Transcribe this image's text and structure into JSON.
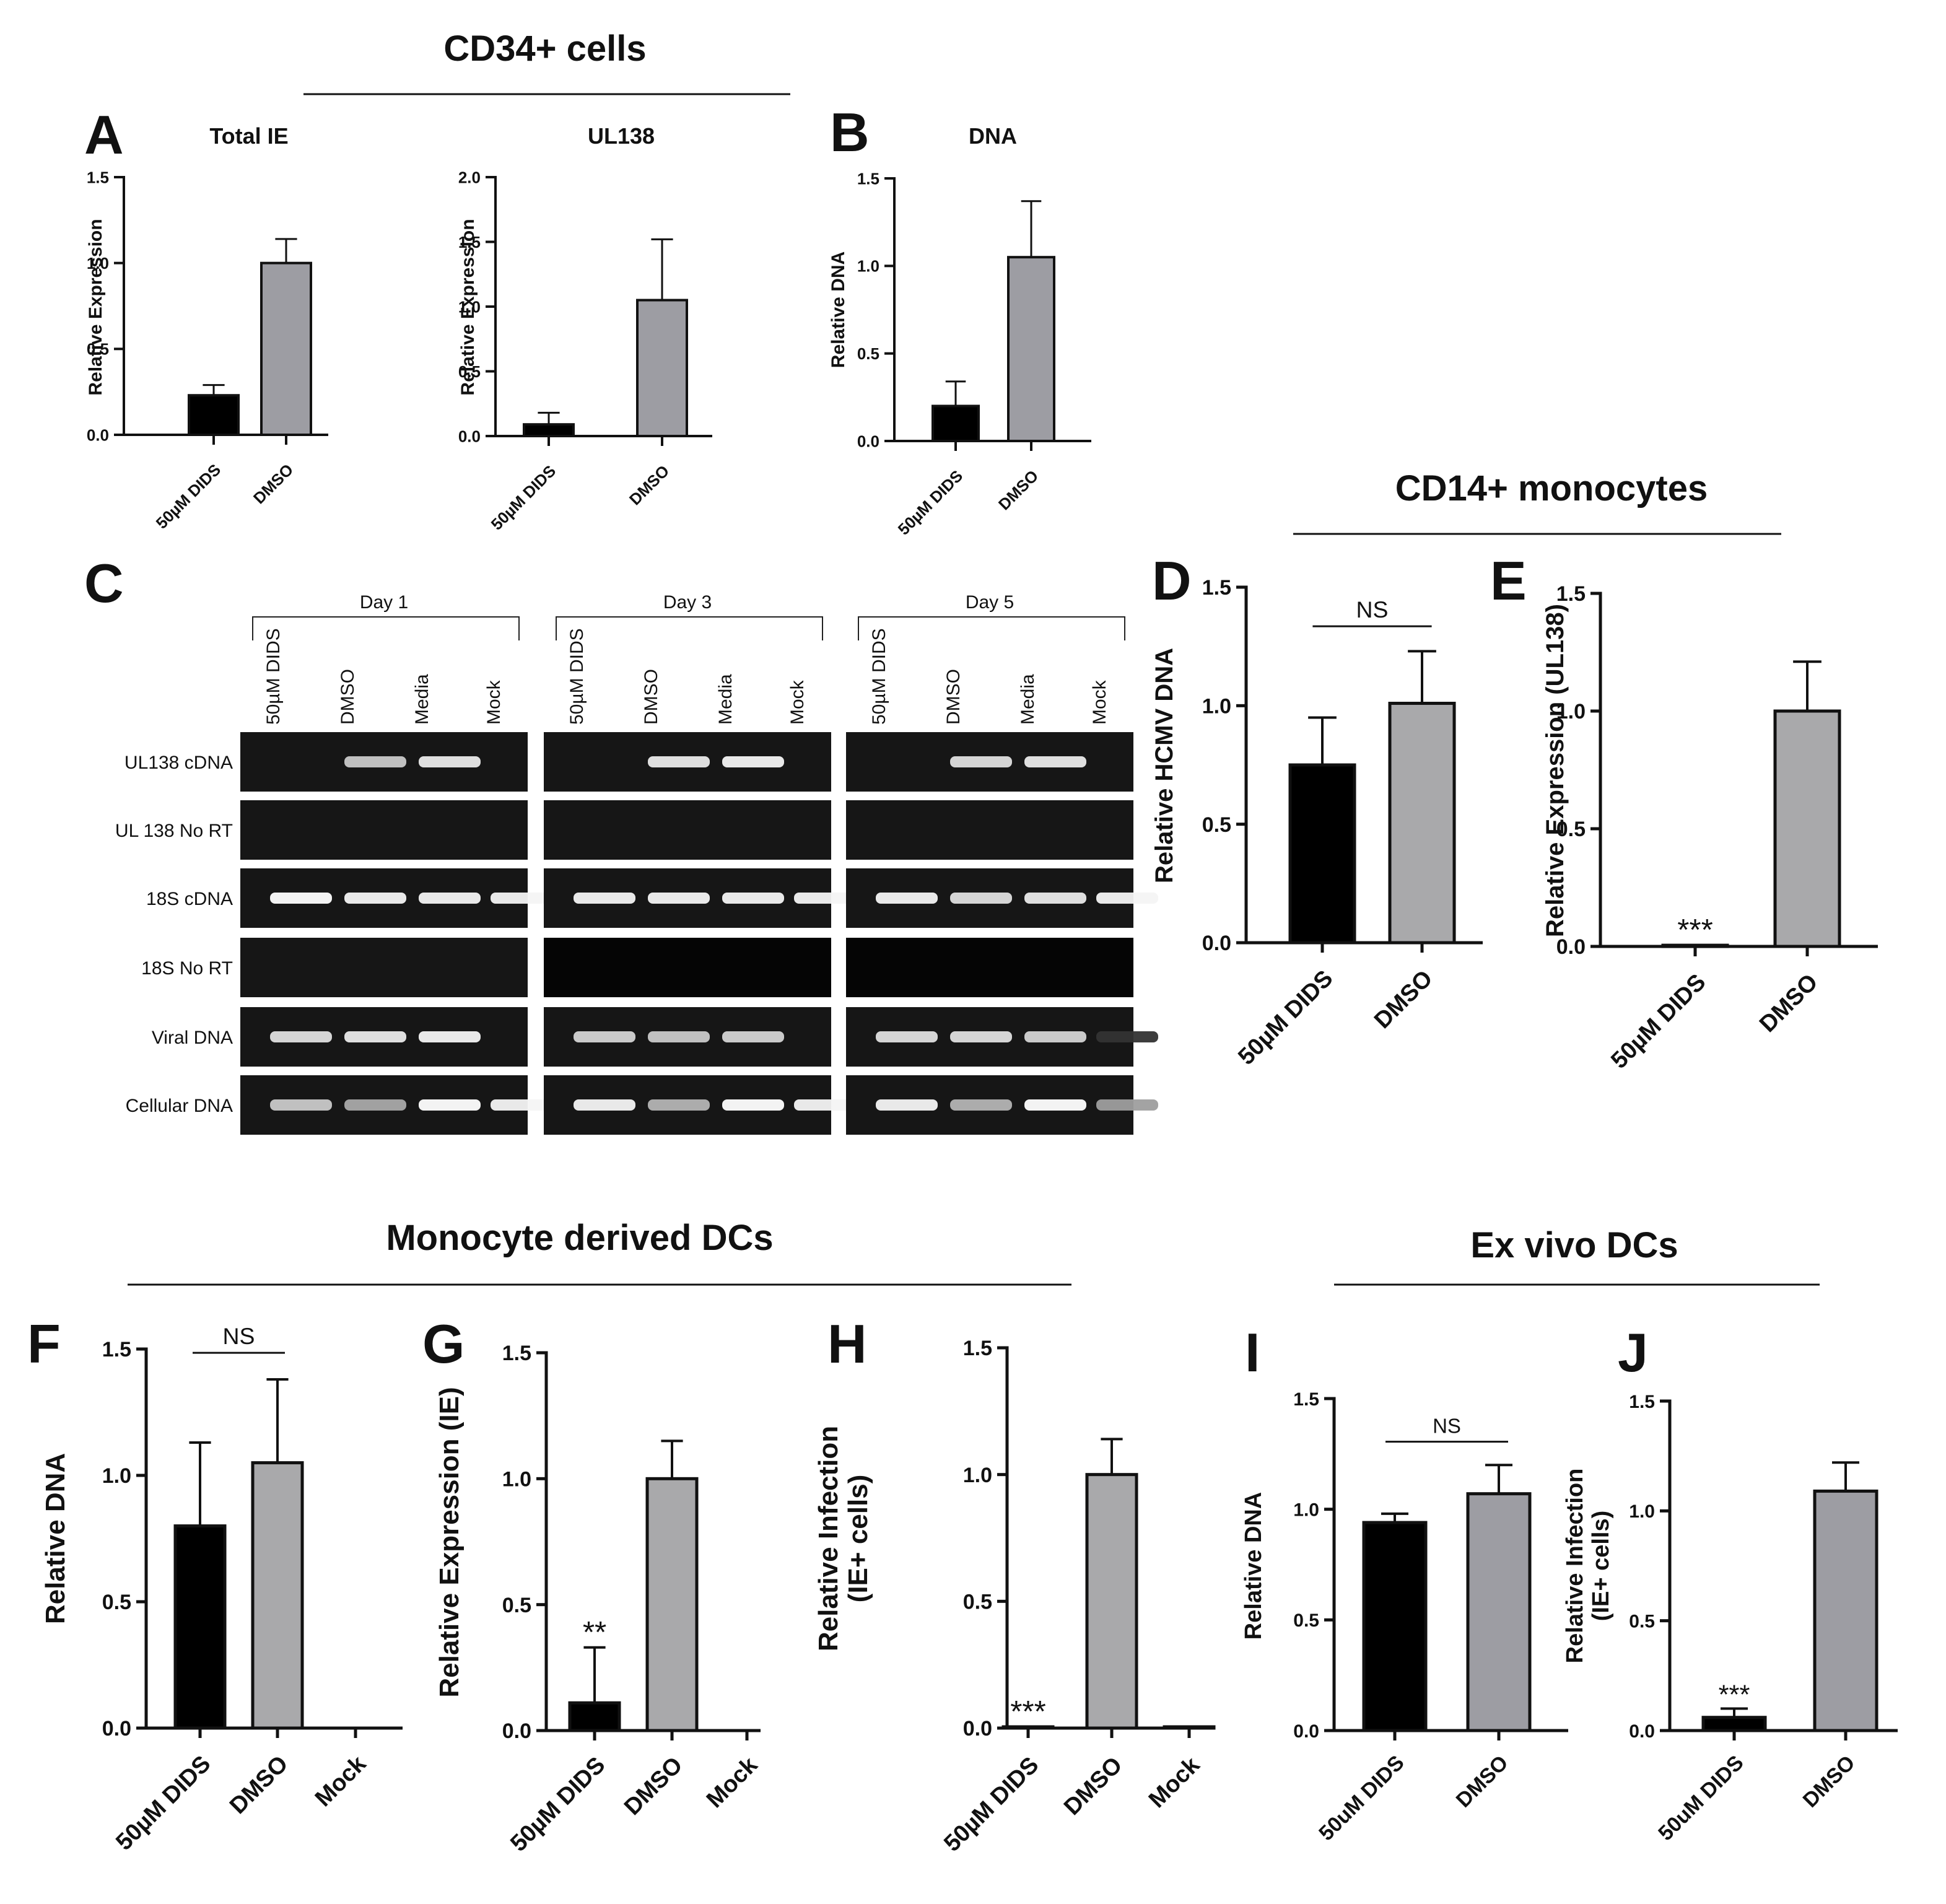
{
  "sections": [
    {
      "title": "CD34+ cells"
    },
    {
      "title": "CD14+ monocytes"
    },
    {
      "title": "Monocyte derived DCs"
    },
    {
      "title": "Ex vivo DCs"
    }
  ],
  "colors": {
    "treatment": "#000000",
    "control": "#9d9da3",
    "control_light": "#a9a9ab",
    "axis": "#111111"
  },
  "chart_data": [
    {
      "id": "A1",
      "letter": "A",
      "type": "bar",
      "title": "Total  IE",
      "ylabel": "Relative Expression",
      "ylim": [
        0,
        1.5
      ],
      "ticks": [
        "0.0",
        "0.5",
        "1.0",
        "1.5"
      ],
      "categories": [
        "50µM DIDS",
        "DMSO"
      ],
      "values": [
        0.23,
        1.0
      ],
      "errors": [
        0.06,
        0.14
      ],
      "significance": [
        "",
        ""
      ],
      "bracket": ""
    },
    {
      "id": "A2",
      "letter": "",
      "type": "bar",
      "title": "UL138",
      "ylabel": "Relative Expression",
      "ylim": [
        0,
        2.0
      ],
      "ticks": [
        "0.0",
        "0.5",
        "1.0",
        "1.5",
        "2.0"
      ],
      "categories": [
        "50µM DIDS",
        "DMSO"
      ],
      "values": [
        0.09,
        1.05
      ],
      "errors": [
        0.09,
        0.47
      ],
      "significance": [
        "",
        ""
      ],
      "bracket": ""
    },
    {
      "id": "B",
      "letter": "B",
      "type": "bar",
      "title": "DNA",
      "ylabel": "Relative DNA",
      "ylim": [
        0,
        1.5
      ],
      "ticks": [
        "0.0",
        "0.5",
        "1.0",
        "1.5"
      ],
      "categories": [
        "50µM DIDS",
        "DMSO"
      ],
      "values": [
        0.2,
        1.05
      ],
      "errors": [
        0.14,
        0.32
      ],
      "significance": [
        "",
        ""
      ],
      "bracket": ""
    },
    {
      "id": "D",
      "letter": "D",
      "type": "bar",
      "title": "",
      "ylabel": "Relative HCMV DNA",
      "ylim": [
        0,
        1.5
      ],
      "ticks": [
        "0.0",
        "0.5",
        "1.0",
        "1.5"
      ],
      "categories": [
        "50µM DIDS",
        "DMSO"
      ],
      "values": [
        0.75,
        1.01
      ],
      "errors": [
        0.2,
        0.22
      ],
      "significance": [
        "",
        ""
      ],
      "bracket": "NS"
    },
    {
      "id": "E",
      "letter": "E",
      "type": "bar",
      "title": "",
      "ylabel": "Relative Expression (UL138)",
      "ylim": [
        0,
        1.5
      ],
      "ticks": [
        "0.0",
        "0.5",
        "1.0",
        "1.5"
      ],
      "categories": [
        "50µM DIDS",
        "DMSO"
      ],
      "values": [
        0.005,
        1.0
      ],
      "errors": [
        0,
        0.21
      ],
      "significance": [
        "***",
        ""
      ],
      "bracket": ""
    },
    {
      "id": "F",
      "letter": "F",
      "type": "bar",
      "title": "",
      "ylabel": "Relative DNA",
      "ylim": [
        0,
        1.5
      ],
      "ticks": [
        "0.0",
        "0.5",
        "1.0",
        "1.5"
      ],
      "categories": [
        "50µM DIDS",
        "DMSO",
        "Mock"
      ],
      "values": [
        0.8,
        1.05,
        0
      ],
      "errors": [
        0.33,
        0.33,
        0
      ],
      "significance": [
        "",
        "",
        ""
      ],
      "bracket": "NS"
    },
    {
      "id": "G",
      "letter": "G",
      "type": "bar",
      "title": "",
      "ylabel": "Relative Expression (IE)",
      "ylim": [
        0,
        1.5
      ],
      "ticks": [
        "0.0",
        "0.5",
        "1.0",
        "1.5"
      ],
      "categories": [
        "50µM DIDS",
        "DMSO",
        "Mock"
      ],
      "values": [
        0.11,
        1.0,
        0
      ],
      "errors": [
        0.22,
        0.15,
        0
      ],
      "significance": [
        "**",
        "",
        ""
      ],
      "bracket": ""
    },
    {
      "id": "H",
      "letter": "H",
      "type": "bar",
      "title": "",
      "ylabel": "Relative Infection",
      "ylabel2": "(IE+ cells)",
      "ylim": [
        0,
        1.5
      ],
      "ticks": [
        "0.0",
        "0.5",
        "1.0",
        "1.5"
      ],
      "categories": [
        "50µM DIDS",
        "DMSO",
        "Mock"
      ],
      "values": [
        0.005,
        1.0,
        0.005
      ],
      "errors": [
        0,
        0.14,
        0
      ],
      "significance": [
        "***",
        "",
        ""
      ],
      "bracket": ""
    },
    {
      "id": "I",
      "letter": "I",
      "type": "bar",
      "title": "",
      "ylabel": "Relative DNA",
      "ylim": [
        0,
        1.5
      ],
      "ticks": [
        "0.0",
        "0.5",
        "1.0",
        "1.5"
      ],
      "categories": [
        "50uM DIDS",
        "DMSO"
      ],
      "values": [
        0.94,
        1.07
      ],
      "errors": [
        0.04,
        0.13
      ],
      "significance": [
        "",
        ""
      ],
      "bracket": "NS"
    },
    {
      "id": "J",
      "letter": "J",
      "type": "bar",
      "title": "",
      "ylabel": "Relative Infection",
      "ylabel2": "(IE+ cells)",
      "ylim": [
        0,
        1.5
      ],
      "ticks": [
        "0.0",
        "0.5",
        "1.0",
        "1.5"
      ],
      "categories": [
        "50uM DIDS",
        "DMSO"
      ],
      "values": [
        0.06,
        1.09
      ],
      "errors": [
        0.04,
        0.13
      ],
      "significance": [
        "***",
        ""
      ],
      "bracket": ""
    }
  ],
  "gel": {
    "letter": "C",
    "groups": [
      {
        "label": "Day 1",
        "lanes": [
          "50µM DIDS",
          "DMSO",
          "Media",
          "Mock"
        ]
      },
      {
        "label": "Day 3",
        "lanes": [
          "50µM DIDS",
          "DMSO",
          "Media",
          "Mock"
        ]
      },
      {
        "label": "Day 5",
        "lanes": [
          "50µM DIDS",
          "DMSO",
          "Media",
          "Mock"
        ]
      }
    ],
    "rows": [
      {
        "label": "UL138 cDNA",
        "intensities": [
          [
            0,
            0.75,
            0.9,
            0
          ],
          [
            0,
            0.9,
            0.95,
            0
          ],
          [
            0,
            0.85,
            0.9,
            0
          ]
        ]
      },
      {
        "label": "UL 138 No RT",
        "intensities": [
          [
            0,
            0,
            0,
            0
          ],
          [
            0,
            0,
            0,
            0
          ],
          [
            0,
            0,
            0,
            0
          ]
        ]
      },
      {
        "label": "18S cDNA",
        "intensities": [
          [
            1,
            0.95,
            0.95,
            0.95
          ],
          [
            0.95,
            0.95,
            0.95,
            0.95
          ],
          [
            0.95,
            0.85,
            0.9,
            0.95
          ]
        ]
      },
      {
        "label": "18S No RT",
        "intensities": [
          [
            0,
            0,
            0,
            0
          ],
          [
            0,
            0,
            0,
            0
          ],
          [
            0,
            0,
            0,
            0
          ]
        ]
      },
      {
        "label": "Viral DNA",
        "intensities": [
          [
            0.85,
            0.9,
            0.95,
            0
          ],
          [
            0.8,
            0.75,
            0.8,
            0
          ],
          [
            0.85,
            0.85,
            0.8,
            0.05
          ]
        ]
      },
      {
        "label": "Cellular DNA",
        "intensities": [
          [
            0.75,
            0.6,
            1,
            0.95
          ],
          [
            0.95,
            0.65,
            1,
            0.95
          ],
          [
            0.95,
            0.65,
            1,
            0.55
          ]
        ]
      }
    ]
  }
}
